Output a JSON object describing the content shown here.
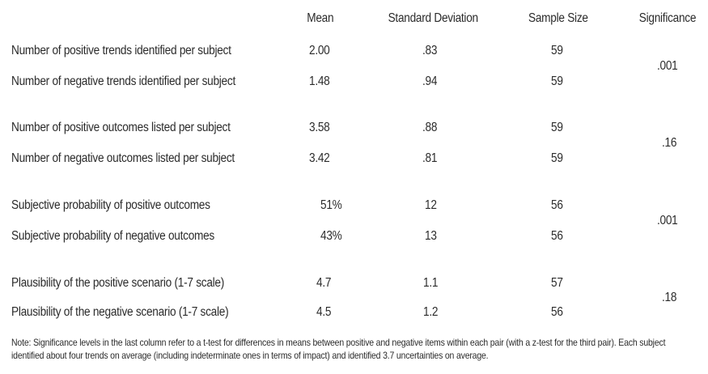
{
  "headers": {
    "mean": "Mean",
    "sd": "Standard Deviation",
    "n": "Sample Size",
    "sig": "Significance"
  },
  "rows": [
    {
      "label": "Number of positive trends identified per subject",
      "mean": "2.00",
      "sd": ".83",
      "n": "59"
    },
    {
      "label": "Number of negative trends identified per subject",
      "mean": "1.48",
      "sd": ".94",
      "n": "59"
    },
    {
      "label": "Number of positive outcomes listed per subject",
      "mean": "3.58",
      "sd": ".88",
      "n": "59"
    },
    {
      "label": "Number of negative outcomes listed per subject",
      "mean": "3.42",
      "sd": ".81",
      "n": "59"
    },
    {
      "label": "Subjective probability of positive outcomes",
      "mean": "51%",
      "sd": "12",
      "n": "56"
    },
    {
      "label": "Subjective probability of negative outcomes",
      "mean": "43%",
      "sd": "13",
      "n": "56"
    },
    {
      "label": "Plausibility of the positive scenario (1-7 scale)",
      "mean": "4.7",
      "sd": "1.1",
      "n": "57"
    },
    {
      "label": "Plausibility of the negative scenario (1-7 scale)",
      "mean": "4.5",
      "sd": "1.2",
      "n": "56"
    }
  ],
  "significance": [
    ".001",
    ".16",
    ".001",
    ".18"
  ],
  "note": "Note: Significance levels in the last column refer to a t-test for differences in means between positive and negative items within each pair (with a z-test for the third pair). Each subject identified about four trends on average (including indeterminate ones in terms of impact) and identified 3.7 uncertainties on average."
}
